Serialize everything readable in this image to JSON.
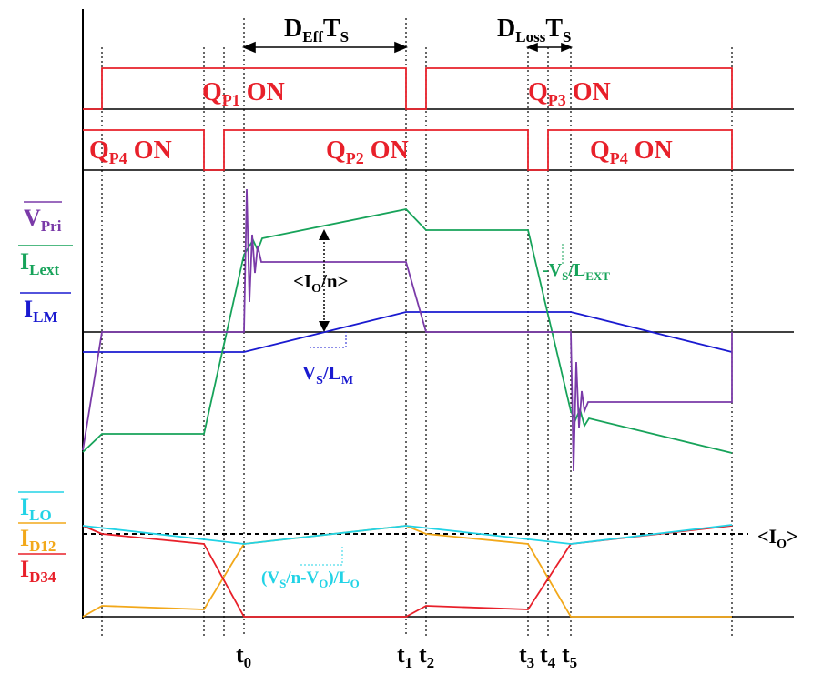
{
  "colors": {
    "gate": "#e8202a",
    "v_pri": "#7a3aa8",
    "i_lext": "#17a35a",
    "i_lm": "#1a1ad0",
    "i_lo": "#22d3e6",
    "i_d12": "#f2a81a",
    "i_d34": "#e8202a",
    "axis": "#000000"
  },
  "gates": {
    "qp1": {
      "base": "Q",
      "sub": "P1",
      "tail": " ON"
    },
    "qp3": {
      "base": "Q",
      "sub": "P3",
      "tail": " ON"
    },
    "qp4a": {
      "base": "Q",
      "sub": "P4",
      "tail": " ON"
    },
    "qp2": {
      "base": "Q",
      "sub": "P2",
      "tail": " ON"
    },
    "qp4b": {
      "base": "Q",
      "sub": "P4",
      "tail": " ON"
    }
  },
  "durations": {
    "eff": {
      "base": "D",
      "sub": "Eff",
      "tail": "T",
      "tail_sub": "S"
    },
    "loss": {
      "base": "D",
      "sub": "Loss",
      "tail": "T",
      "tail_sub": "S"
    }
  },
  "signals": {
    "v_pri": {
      "base": "V",
      "sub": "Pri"
    },
    "i_lext": {
      "base": "I",
      "sub": "Lext"
    },
    "i_lm": {
      "base": "I",
      "sub": "LM"
    },
    "i_lo": {
      "base": "I",
      "sub": "LO"
    },
    "i_d12": {
      "base": "I",
      "sub": "D12"
    },
    "i_d34": {
      "base": "I",
      "sub": "D34"
    }
  },
  "annotations": {
    "io_over_n": {
      "a": "<I",
      "sub": "O",
      "b": "/n>"
    },
    "vs_over_lext": {
      "a": "-V",
      "sub1": "S",
      "b": "/L",
      "sub2": "EXT"
    },
    "vs_over_lm": {
      "a": "V",
      "sub1": "S",
      "b": "/L",
      "sub2": "M"
    },
    "lo_slope": {
      "a": "(V",
      "sub1": "S",
      "b": "/n-V",
      "sub2": "O",
      "c": ")/L",
      "sub3": "O"
    },
    "io_avg": {
      "a": "<I",
      "sub": "O",
      "b": ">"
    }
  },
  "time_marks": {
    "t0": {
      "base": "t",
      "sub": "0"
    },
    "t1": {
      "base": "t",
      "sub": "1"
    },
    "t2": {
      "base": "t",
      "sub": "2"
    },
    "t3": {
      "base": "t",
      "sub": "3"
    },
    "t4": {
      "base": "t",
      "sub": "4"
    },
    "t5": {
      "base": "t",
      "sub": "5"
    }
  }
}
